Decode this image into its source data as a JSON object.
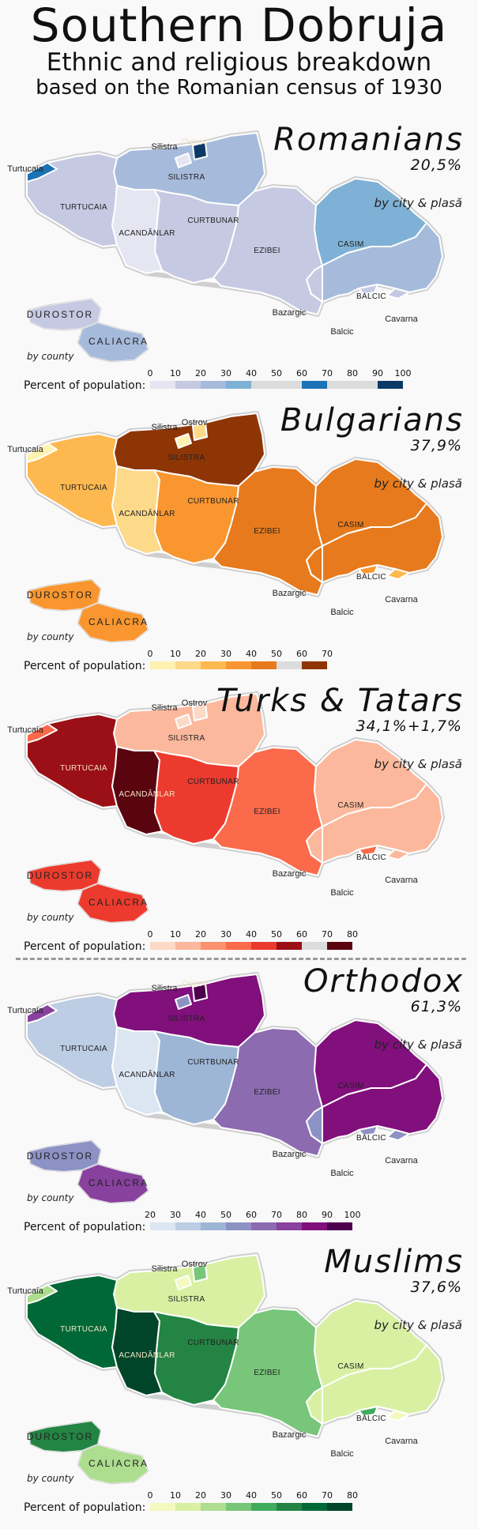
{
  "title": "Southern Dobruja",
  "subtitle": "Ethnic and religious breakdown",
  "subtitle2": "based on the Romanian census of 1930",
  "labels": {
    "turtucaia_city": "Turtucaia",
    "silistra_city": "Silistra",
    "ostrov": "Ostrov",
    "silistra": "SILISTRA",
    "turtucaia": "TURTUCAIA",
    "acandanlar": "ACANDÂNLAR",
    "curtbunar": "CURTBUNAR",
    "ezibei": "EZIBEI",
    "casim": "CASIM",
    "balcic": "BALCIC",
    "bazargic": "Bazargic",
    "cavarna": "Cavarna",
    "balcic_city": "Balcic",
    "durostor": "DUROSTOR",
    "caliacra": "CALIACRA"
  },
  "scope_label": "by city & plasă",
  "county_label": "by county",
  "legend_label": "Percent of population:",
  "panels": [
    {
      "title": "Romanians",
      "pct": "20,5%",
      "ticks": [
        "0",
        "10",
        "20",
        "30",
        "40",
        "50",
        "60",
        "70",
        "80",
        "90",
        "100"
      ],
      "colors": [
        "#e6e5f2",
        "#c6c9e2",
        "#a6bbdc",
        "#7fb0d5",
        "#dcdcdc",
        "#dcdcdc",
        "#1a73b5",
        "#dcdcdc",
        "#dcdcdc",
        "#0c3a66"
      ],
      "fills": {
        "turtucaia_city": "#1a73b5",
        "silistra_city": "#e6e5f2",
        "ostrov": "#0c3a66",
        "silistra": "#a6bbdc",
        "turtucaia": "#c6c9e2",
        "acandanlar": "#e6e5f2",
        "curtbunar": "#c6c9e2",
        "ezibei": "#c6c9e2",
        "casim": "#7fb0d5",
        "balcic": "#a6bbdc",
        "bazargic": "#c6c9e2",
        "cavarna": "#c6c9e2",
        "balcic_city": "#c6c9e2",
        "durostor": "#c6c9e2",
        "caliacra": "#a6bbdc"
      }
    },
    {
      "title": "Bulgarians",
      "pct": "37,9%",
      "ticks": [
        "0",
        "10",
        "20",
        "30",
        "40",
        "50",
        "60",
        "70"
      ],
      "colors": [
        "#fff2b0",
        "#fdd98a",
        "#fdb84f",
        "#f9962f",
        "#e77a1c",
        "#dcdcdc",
        "#8e3505"
      ],
      "fills": {
        "turtucaia_city": "#fff2b0",
        "silistra_city": "#fff2b0",
        "ostrov": "#fdd98a",
        "silistra": "#8e3505",
        "turtucaia": "#fdb84f",
        "acandanlar": "#fdd98a",
        "curtbunar": "#f9962f",
        "ezibei": "#e77a1c",
        "casim": "#e77a1c",
        "balcic": "#e77a1c",
        "bazargic": "#e77a1c",
        "cavarna": "#fdb84f",
        "balcic_city": "#f9962f",
        "durostor": "#f9962f",
        "caliacra": "#f9962f"
      }
    },
    {
      "title": "Turks & Tatars",
      "pct": "34,1%+1,7%",
      "ticks": [
        "0",
        "10",
        "20",
        "30",
        "40",
        "50",
        "60",
        "70",
        "80"
      ],
      "colors": [
        "#fdd9c6",
        "#fcb89c",
        "#fc9170",
        "#fb6a4a",
        "#ec3b2e",
        "#9b0f16",
        "#dcdcdc",
        "#5a0410"
      ],
      "fills": {
        "turtucaia_city": "#fb6a4a",
        "silistra_city": "#fdd9c6",
        "ostrov": "#fdd9c6",
        "silistra": "#fcb89c",
        "turtucaia": "#9b0f16",
        "acandanlar": "#5a0410",
        "curtbunar": "#ec3b2e",
        "ezibei": "#fb6a4a",
        "casim": "#fcb89c",
        "balcic": "#fcb89c",
        "bazargic": "#fcb89c",
        "cavarna": "#fcb89c",
        "balcic_city": "#fb6a4a",
        "durostor": "#ec3b2e",
        "caliacra": "#ec3b2e"
      }
    },
    {
      "title": "Orthodox",
      "pct": "61,3%",
      "ticks": [
        "20",
        "30",
        "40",
        "50",
        "60",
        "70",
        "80",
        "90",
        "100"
      ],
      "colors": [
        "#dce6f2",
        "#bccde4",
        "#9db6d6",
        "#8c92c4",
        "#8c6bb1",
        "#88419d",
        "#810f7c",
        "#4d004b"
      ],
      "fills": {
        "turtucaia_city": "#88419d",
        "silistra_city": "#8c92c4",
        "ostrov": "#4d004b",
        "silistra": "#810f7c",
        "turtucaia": "#bccde4",
        "acandanlar": "#dce6f2",
        "curtbunar": "#9db6d6",
        "ezibei": "#8c6bb1",
        "casim": "#810f7c",
        "balcic": "#810f7c",
        "bazargic": "#8c92c4",
        "cavarna": "#8c92c4",
        "balcic_city": "#8c92c4",
        "durostor": "#8c92c4",
        "caliacra": "#88419d"
      }
    },
    {
      "title": "Muslims",
      "pct": "37,6%",
      "ticks": [
        "0",
        "10",
        "20",
        "30",
        "40",
        "50",
        "60",
        "70",
        "80"
      ],
      "colors": [
        "#f4f9c0",
        "#d9f0a3",
        "#addd8e",
        "#78c679",
        "#41ab5d",
        "#238443",
        "#006837",
        "#004529"
      ],
      "fills": {
        "turtucaia_city": "#addd8e",
        "silistra_city": "#f4f9c0",
        "ostrov": "#78c679",
        "silistra": "#d9f0a3",
        "turtucaia": "#006837",
        "acandanlar": "#004529",
        "curtbunar": "#238443",
        "ezibei": "#78c679",
        "casim": "#d9f0a3",
        "balcic": "#d9f0a3",
        "bazargic": "#d9f0a3",
        "cavarna": "#f4f9c0",
        "balcic_city": "#41ab5d",
        "durostor": "#238443",
        "caliacra": "#addd8e"
      }
    }
  ]
}
